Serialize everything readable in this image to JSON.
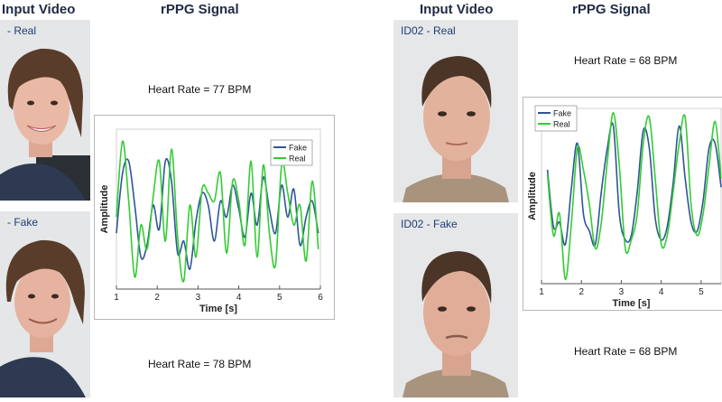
{
  "headings": {
    "left_input": "Input Video",
    "left_signal": "rPPG Signal",
    "right_input": "Input Video",
    "right_signal": "rPPG Signal"
  },
  "videos": {
    "id01_real": "- Real",
    "id01_fake": "- Fake",
    "id02_real": "ID02 - Real",
    "id02_fake": "ID02 - Fake"
  },
  "heart_rates": {
    "left_top": "Heart Rate = 77 BPM",
    "left_bottom": "Heart Rate = 78 BPM",
    "right_top": "Heart Rate = 68 BPM",
    "right_bottom": "Heart Rate = 68 BPM"
  },
  "colors": {
    "fake": "#2f5597",
    "real": "#33cc33",
    "heading": "#1f2a44"
  },
  "chart_data": [
    {
      "type": "line",
      "xlabel": "Time [s]",
      "ylabel": "Amplitude",
      "xlim": [
        1,
        6
      ],
      "ylim": [
        -1,
        1
      ],
      "xticks": [
        1,
        2,
        3,
        4,
        5,
        6
      ],
      "legend": "top-right",
      "series": [
        {
          "name": "Fake",
          "color": "#2f5597",
          "x": [
            1.0,
            1.15,
            1.3,
            1.45,
            1.6,
            1.75,
            1.9,
            2.05,
            2.2,
            2.35,
            2.5,
            2.65,
            2.8,
            2.95,
            3.1,
            3.25,
            3.4,
            3.55,
            3.7,
            3.85,
            4.0,
            4.15,
            4.3,
            4.45,
            4.6,
            4.75,
            4.9,
            5.05,
            5.2,
            5.35,
            5.5,
            5.65,
            5.8,
            5.95
          ],
          "y": [
            -0.3,
            0.45,
            0.6,
            0.05,
            -0.6,
            -0.45,
            0.05,
            -0.25,
            0.6,
            0.35,
            -0.55,
            -0.4,
            -0.75,
            -0.15,
            0.2,
            0.05,
            -0.4,
            0.1,
            -0.1,
            0.3,
            0.0,
            -0.35,
            0.2,
            -0.2,
            0.4,
            0.0,
            -0.3,
            0.3,
            -0.1,
            0.25,
            -0.45,
            -0.1,
            0.1,
            -0.3
          ]
        },
        {
          "name": "Real",
          "color": "#33cc33",
          "x": [
            1.0,
            1.15,
            1.3,
            1.45,
            1.6,
            1.75,
            1.9,
            2.05,
            2.2,
            2.35,
            2.5,
            2.65,
            2.8,
            2.95,
            3.1,
            3.25,
            3.4,
            3.55,
            3.7,
            3.85,
            4.0,
            4.15,
            4.3,
            4.45,
            4.6,
            4.75,
            4.9,
            5.05,
            5.2,
            5.35,
            5.5,
            5.65,
            5.8,
            5.95
          ],
          "y": [
            -0.1,
            0.85,
            0.1,
            -0.85,
            -0.2,
            -0.5,
            0.15,
            0.6,
            -0.4,
            0.75,
            -0.35,
            -0.9,
            0.05,
            -0.6,
            0.25,
            0.2,
            0.1,
            0.45,
            -0.55,
            0.35,
            0.1,
            -0.45,
            0.6,
            -0.6,
            0.55,
            -0.3,
            -0.7,
            0.55,
            0.2,
            -0.2,
            0.05,
            -0.65,
            0.35,
            -0.5
          ]
        }
      ]
    },
    {
      "type": "line",
      "xlabel": "Time [s]",
      "ylabel": "Amplitude",
      "xlim": [
        1,
        5.5
      ],
      "ylim": [
        -1,
        1
      ],
      "xticks": [
        1,
        2,
        3,
        4,
        5
      ],
      "legend": "top-left",
      "series": [
        {
          "name": "Fake",
          "color": "#2f5597",
          "x": [
            1.15,
            1.3,
            1.45,
            1.6,
            1.75,
            1.9,
            2.05,
            2.2,
            2.35,
            2.5,
            2.65,
            2.8,
            2.95,
            3.1,
            3.25,
            3.4,
            3.55,
            3.7,
            3.85,
            4.0,
            4.15,
            4.3,
            4.45,
            4.6,
            4.75,
            4.9,
            5.05,
            5.2,
            5.35,
            5.5
          ],
          "y": [
            0.3,
            -0.35,
            -0.3,
            -0.55,
            0.1,
            0.6,
            -0.2,
            -0.4,
            -0.55,
            0.05,
            0.55,
            0.8,
            -0.2,
            -0.5,
            -0.45,
            0.05,
            0.75,
            0.55,
            -0.25,
            -0.5,
            -0.35,
            0.15,
            0.8,
            0.2,
            -0.3,
            -0.4,
            -0.05,
            0.55,
            0.6,
            0.1
          ]
        },
        {
          "name": "Real",
          "color": "#33cc33",
          "x": [
            1.15,
            1.3,
            1.45,
            1.6,
            1.75,
            1.9,
            2.05,
            2.2,
            2.35,
            2.5,
            2.65,
            2.8,
            2.95,
            3.1,
            3.25,
            3.4,
            3.55,
            3.7,
            3.85,
            4.0,
            4.15,
            4.3,
            4.45,
            4.6,
            4.75,
            4.9,
            5.05,
            5.2,
            5.35,
            5.5
          ],
          "y": [
            0.25,
            -0.45,
            -0.2,
            -0.95,
            -0.3,
            0.55,
            0.3,
            -0.1,
            -0.6,
            -0.3,
            0.4,
            0.95,
            0.35,
            -0.6,
            -0.5,
            -0.2,
            0.6,
            0.9,
            0.2,
            -0.55,
            -0.45,
            0.05,
            0.6,
            0.9,
            -0.1,
            -0.45,
            -0.2,
            0.35,
            0.85,
            0.2
          ]
        }
      ]
    }
  ]
}
